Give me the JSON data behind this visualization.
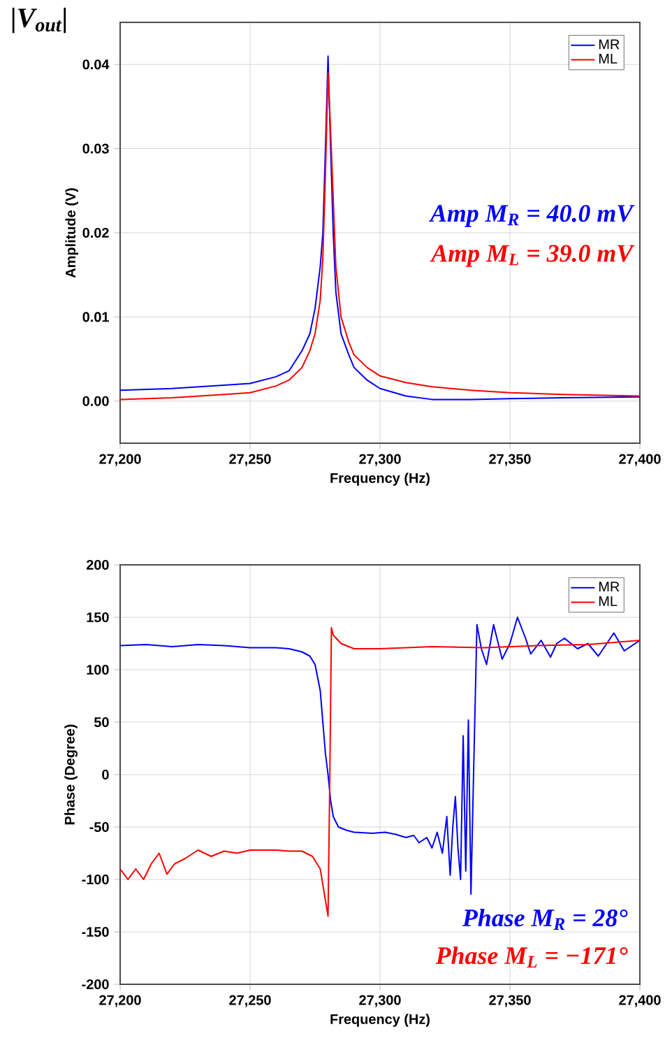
{
  "chart_data": [
    {
      "type": "line",
      "title": "|V$_{out}$|",
      "xlabel": "Frequency (Hz)",
      "ylabel": "Amplitude (V)",
      "xlim": [
        27200,
        27400
      ],
      "xticks": [
        {
          "value": 27200,
          "label": "27,200"
        },
        {
          "value": 27250,
          "label": "27,250"
        },
        {
          "value": 27300,
          "label": "27,300"
        },
        {
          "value": 27350,
          "label": "27,350"
        },
        {
          "value": 27400,
          "label": "27,400"
        }
      ],
      "ylim": [
        -0.005,
        0.045
      ],
      "yticks": [
        {
          "value": 0,
          "label": "0.00"
        },
        {
          "value": 0.01,
          "label": "0.01"
        },
        {
          "value": 0.02,
          "label": "0.02"
        },
        {
          "value": 0.03,
          "label": "0.03"
        },
        {
          "value": 0.04,
          "label": "0.04"
        }
      ],
      "grid": true,
      "legend": "top right",
      "marker": "none",
      "line_style": "solid",
      "annotations": [
        "Amp M$_{R}$ = 40.0 mV",
        "Amp M$_{L}$ = 39.0 mV"
      ],
      "series": [
        {
          "name": "MR",
          "color": "#0000ff",
          "x": [
            27200,
            27220,
            27240,
            27250,
            27260,
            27265,
            27270,
            27273,
            27275,
            27277,
            27278,
            27279,
            27280,
            27281,
            27282,
            27283,
            27285,
            27288,
            27290,
            27295,
            27300,
            27310,
            27320,
            27335,
            27350,
            27370,
            27400
          ],
          "values": [
            0.0013,
            0.0015,
            0.0019,
            0.0021,
            0.0029,
            0.0036,
            0.006,
            0.008,
            0.011,
            0.016,
            0.02,
            0.03,
            0.041,
            0.03,
            0.02,
            0.013,
            0.008,
            0.0055,
            0.004,
            0.0025,
            0.0015,
            0.0006,
            0.0002,
            0.0002,
            0.0003,
            0.0004,
            0.0005
          ]
        },
        {
          "name": "ML",
          "color": "#ff0000",
          "x": [
            27200,
            27220,
            27240,
            27250,
            27260,
            27265,
            27270,
            27273,
            27275,
            27277,
            27278,
            27279,
            27280,
            27281,
            27282,
            27283,
            27285,
            27288,
            27290,
            27295,
            27300,
            27310,
            27320,
            27335,
            27350,
            27370,
            27400
          ],
          "values": [
            0.0002,
            0.0004,
            0.0008,
            0.001,
            0.0018,
            0.0025,
            0.004,
            0.006,
            0.008,
            0.012,
            0.017,
            0.027,
            0.039,
            0.032,
            0.024,
            0.016,
            0.01,
            0.007,
            0.0055,
            0.004,
            0.003,
            0.0022,
            0.0017,
            0.0013,
            0.001,
            0.0008,
            0.0006
          ]
        }
      ]
    },
    {
      "type": "line",
      "xlabel": "Frequency (Hz)",
      "ylabel": "Phase (Degree)",
      "xlim": [
        27200,
        27400
      ],
      "xticks": [
        {
          "value": 27200,
          "label": "27,200"
        },
        {
          "value": 27250,
          "label": "27,250"
        },
        {
          "value": 27300,
          "label": "27,300"
        },
        {
          "value": 27350,
          "label": "27,350"
        },
        {
          "value": 27400,
          "label": "27,400"
        }
      ],
      "ylim": [
        -200,
        200
      ],
      "yticks": [
        -200,
        -150,
        -100,
        -50,
        0,
        50,
        100,
        150,
        200
      ],
      "grid": true,
      "legend": "top right",
      "marker": "none",
      "line_style": "solid",
      "annotations": [
        "Phase M$_{R}$ = 28°",
        "Phase M$_{L}$ = −171°"
      ],
      "series": [
        {
          "name": "MR",
          "color": "#0000ff",
          "x": [
            27200,
            27210,
            27220,
            27230,
            27240,
            27250,
            27260,
            27265,
            27270,
            27273,
            27275,
            27277,
            27278,
            27279,
            27280,
            27281,
            27282,
            27284,
            27287,
            27290,
            27297,
            27302,
            27306,
            27310,
            27313,
            27315,
            27318,
            27320,
            27322,
            27324,
            27325.7,
            27327,
            27328,
            27329,
            27330,
            27331,
            27332,
            27333,
            27334,
            27335,
            27336,
            27337.3,
            27339,
            27341,
            27343.7,
            27347,
            27350,
            27352.9,
            27356,
            27358,
            27362,
            27365.6,
            27368,
            27371,
            27376,
            27380,
            27384,
            27390,
            27394,
            27400
          ],
          "values": [
            123,
            124,
            122,
            124,
            123,
            121,
            121,
            120,
            117,
            113,
            105,
            80,
            50,
            20,
            0,
            -25,
            -40,
            -50,
            -53,
            -55,
            -56,
            -55,
            -57,
            -60,
            -58,
            -65,
            -60,
            -70,
            -55,
            -75,
            -40,
            -96,
            -50,
            -21,
            -70,
            -100,
            37,
            -92,
            52,
            -114,
            0,
            143,
            120,
            105,
            143,
            110,
            125,
            150,
            130,
            115,
            128,
            112,
            125,
            130,
            120,
            125,
            113,
            135,
            118,
            128
          ]
        },
        {
          "name": "ML",
          "color": "#ff0000",
          "x": [
            27200,
            27203,
            27206,
            27209,
            27212,
            27215,
            27218,
            27221,
            27225,
            27230,
            27235,
            27240,
            27245,
            27250,
            27255,
            27260,
            27265,
            27270,
            27274,
            27277,
            27279,
            27280,
            27280.7,
            27281.3,
            27282,
            27285,
            27290,
            27300,
            27320,
            27340,
            27360,
            27380,
            27400
          ],
          "values": [
            -90,
            -100,
            -90,
            -100,
            -85,
            -75,
            -95,
            -85,
            -80,
            -72,
            -78,
            -73,
            -75,
            -72,
            -72,
            -72,
            -73,
            -73,
            -78,
            -90,
            -120,
            -135,
            0,
            140,
            133,
            125,
            120,
            120,
            122,
            121,
            123,
            124,
            128
          ]
        }
      ]
    }
  ]
}
